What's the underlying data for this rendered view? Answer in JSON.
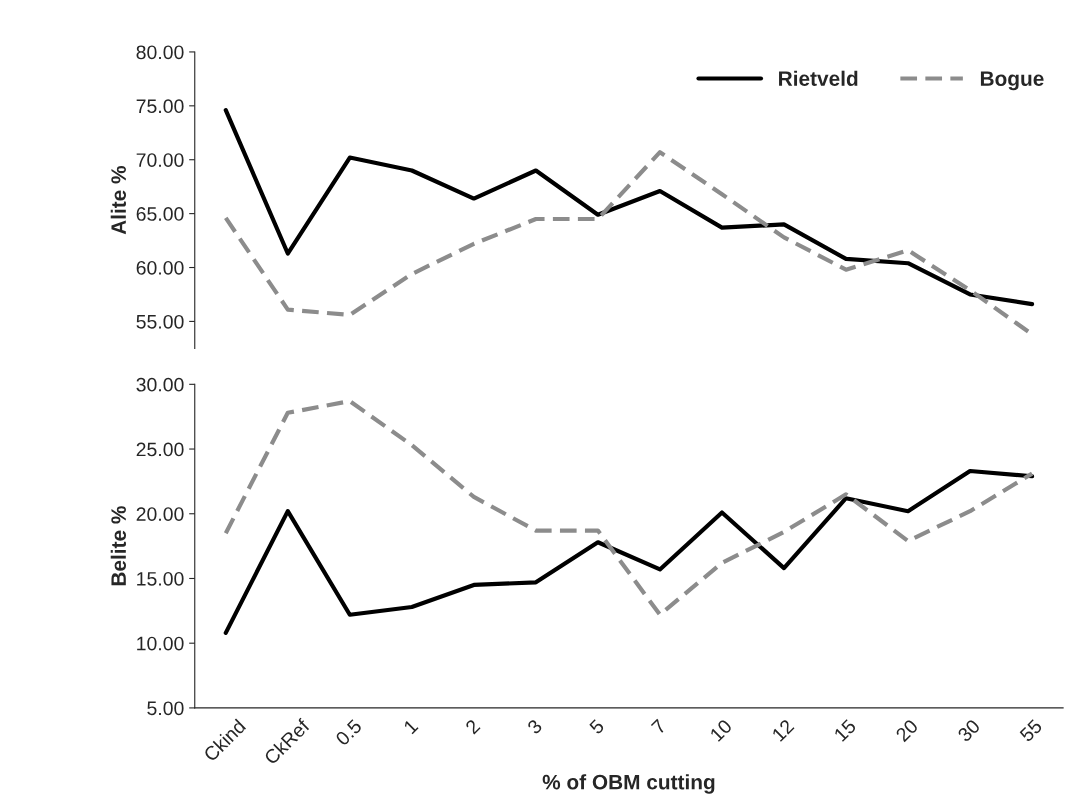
{
  "chart_data": [
    {
      "type": "line",
      "ylabel": "Alite %",
      "categories": [
        null,
        null,
        null,
        null,
        null,
        null,
        null,
        null,
        null,
        null,
        null,
        null,
        null,
        null
      ],
      "ylim": [
        52.5,
        80
      ],
      "yticks": [
        {
          "value": 55,
          "label": "55.00"
        },
        {
          "value": 60,
          "label": "60.00"
        },
        {
          "value": 65,
          "label": "65.00"
        },
        {
          "value": 70,
          "label": "70.00"
        },
        {
          "value": 75,
          "label": "75.00"
        },
        {
          "value": 80,
          "label": "80.00"
        }
      ],
      "tick_labels": "y",
      "legend": "top right",
      "grid": false,
      "series": [
        {
          "name": "Rietveld",
          "color": "#000000",
          "line_style": "solid",
          "values": [
            74.6,
            61.3,
            70.2,
            69.0,
            66.4,
            69.0,
            64.9,
            67.1,
            63.7,
            64.0,
            60.8,
            60.4,
            57.5,
            56.6
          ]
        },
        {
          "name": "Bogue",
          "color": "#8c8c8c",
          "line_style": "dashed",
          "values": [
            64.6,
            56.1,
            55.6,
            59.4,
            62.2,
            64.5,
            64.5,
            70.7,
            66.8,
            62.8,
            59.8,
            61.6,
            57.9,
            53.8
          ]
        }
      ]
    },
    {
      "type": "line",
      "ylabel": "Belite %",
      "xlabel": "% of OBM cutting",
      "categories": [
        "Ckind",
        "CkRef",
        "0.5",
        "1",
        "2",
        "3",
        "5",
        "7",
        "10",
        "12",
        "15",
        "20",
        "30",
        "55"
      ],
      "ylim": [
        5,
        30
      ],
      "yticks": [
        {
          "value": 5,
          "label": "5.00"
        },
        {
          "value": 10,
          "label": "10.00"
        },
        {
          "value": 15,
          "label": "15.00"
        },
        {
          "value": 20,
          "label": "20.00"
        },
        {
          "value": 25,
          "label": "25.00"
        },
        {
          "value": 30,
          "label": "30.00"
        }
      ],
      "grid": false,
      "series": [
        {
          "color": "#000000",
          "line_style": "solid",
          "values": [
            10.8,
            20.2,
            12.2,
            12.8,
            14.5,
            14.7,
            17.8,
            15.7,
            20.1,
            15.8,
            21.2,
            20.2,
            23.3,
            22.9
          ]
        },
        {
          "color": "#8c8c8c",
          "line_style": "dashed",
          "values": [
            18.5,
            27.8,
            28.7,
            25.3,
            21.3,
            18.7,
            18.7,
            12.2,
            16.2,
            18.6,
            21.5,
            17.9,
            20.2,
            23.1
          ]
        }
      ]
    }
  ]
}
